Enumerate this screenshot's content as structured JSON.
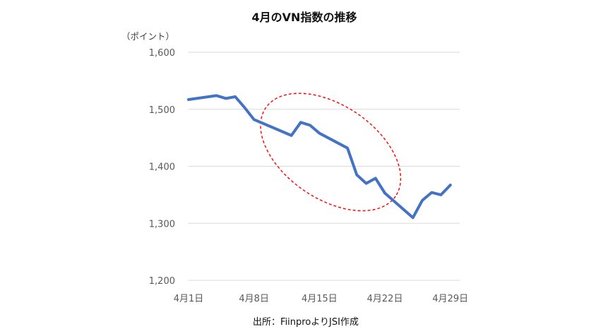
{
  "chart_data": {
    "type": "line",
    "title": "4月のVN指数の推移",
    "unit_label": "（ポイント）",
    "source": "出所：FiinproよりJSI作成",
    "ylim": [
      1200,
      1600
    ],
    "y_ticks": [
      1200,
      1300,
      1400,
      1500,
      1600
    ],
    "y_tick_labels": [
      "1,200",
      "1,300",
      "1,400",
      "1,500",
      "1,600"
    ],
    "x_range": [
      1,
      30
    ],
    "x_ticks": [
      1,
      8,
      15,
      22,
      29
    ],
    "x_tick_labels": [
      "4月1日",
      "4月8日",
      "4月15日",
      "4月22日",
      "4月29日"
    ],
    "grid": "horizontal",
    "colors": {
      "series": "#4472C4",
      "annotation": "#FF0000"
    },
    "annotation": {
      "shape": "dashed ellipse",
      "center_x": 16.2,
      "center_y": 1425,
      "rx": 8.4,
      "ry": 82
    },
    "series": [
      {
        "x": [
          1,
          4,
          5,
          6,
          7,
          8,
          9,
          12,
          13,
          14,
          15,
          18,
          19,
          20,
          21,
          22,
          25,
          26,
          27,
          28,
          29
        ],
        "values": [
          1517,
          1524,
          1519,
          1522,
          1503,
          1482,
          1475,
          1454,
          1477,
          1472,
          1458,
          1432,
          1385,
          1370,
          1379,
          1353,
          1310,
          1340,
          1354,
          1350,
          1367
        ]
      }
    ]
  }
}
